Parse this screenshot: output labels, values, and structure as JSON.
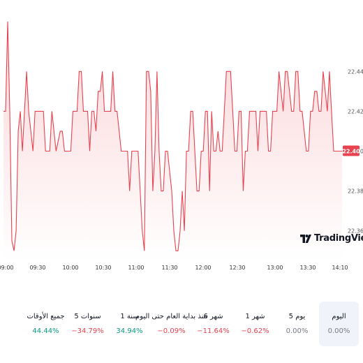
{
  "chart_data": {
    "type": "area",
    "x_ticks": [
      "09:00",
      "09:30",
      "10:00",
      "10:30",
      "11:00",
      "11:30",
      "12:00",
      "12:30",
      "13:00",
      "13:30",
      "14:10"
    ],
    "y_ticks": [
      "22.44",
      "22.42",
      "22.40",
      "22.38",
      "22.36"
    ],
    "ylim": [
      22.348,
      22.466
    ],
    "last_price_label": "22.40",
    "colors": {
      "line": "#e8424f",
      "fill_top": "#fbd5d8",
      "fill_bottom": "#ffffff"
    },
    "grid": false,
    "values": [
      22.42,
      22.42,
      22.465,
      22.42,
      22.355,
      22.35,
      22.36,
      22.41,
      22.42,
      22.4,
      22.42,
      22.44,
      22.42,
      22.41,
      22.4,
      22.42,
      22.42,
      22.42,
      22.42,
      22.42,
      22.4,
      22.4,
      22.4,
      22.42,
      22.41,
      22.4,
      22.405,
      22.41,
      22.41,
      22.4,
      22.4,
      22.4,
      22.4,
      22.42,
      22.42,
      22.42,
      22.44,
      22.44,
      22.42,
      22.42,
      22.42,
      22.4,
      22.42,
      22.42,
      22.41,
      22.43,
      22.43,
      22.44,
      22.42,
      22.42,
      22.42,
      22.42,
      22.44,
      22.42,
      22.42,
      22.41,
      22.4,
      22.4,
      22.4,
      22.4,
      22.38,
      22.4,
      22.4,
      22.4,
      22.4,
      22.38,
      22.36,
      22.35,
      22.44,
      22.44,
      22.43,
      22.38,
      22.4,
      22.44,
      22.4,
      22.38,
      22.38,
      22.4,
      22.4,
      22.39,
      22.38,
      22.36,
      22.35,
      22.35,
      22.36,
      22.38,
      22.36,
      22.4,
      22.4,
      22.42,
      22.42,
      22.4,
      22.38,
      22.38,
      22.4,
      22.4,
      22.42,
      22.42,
      22.38,
      22.42,
      22.4,
      22.4,
      22.41,
      22.4,
      22.4,
      22.42,
      22.44,
      22.44,
      22.44,
      22.42,
      22.4,
      22.4,
      22.42,
      22.42,
      22.38,
      22.4,
      22.4,
      22.42,
      22.42,
      22.42,
      22.42,
      22.4,
      22.42,
      22.42,
      22.42,
      22.42,
      22.4,
      22.4,
      22.42,
      22.42,
      22.42,
      22.44,
      22.43,
      22.42,
      22.44,
      22.44,
      22.43,
      22.42,
      22.42,
      22.44,
      22.44,
      22.42,
      22.42,
      22.41,
      22.4,
      22.4,
      22.42,
      22.42,
      22.43,
      22.43,
      22.42,
      22.42,
      22.44,
      22.43,
      22.42,
      22.44,
      22.42,
      22.4,
      22.4,
      22.4,
      22.4,
      22.4
    ]
  },
  "brand": {
    "name": "TradingView"
  },
  "periods": [
    {
      "label": "اليوم",
      "value": "0.00%",
      "tone": "neu",
      "active": true
    },
    {
      "label": "5 يوم",
      "value": "0.00%",
      "tone": "neu",
      "active": false
    },
    {
      "label": "1 شهر",
      "value": "−0.62%",
      "tone": "neg",
      "active": false
    },
    {
      "label": "6 شهر",
      "value": "−11.64%",
      "tone": "neg",
      "active": false
    },
    {
      "label": "منذ بداية العام حتى اليوم",
      "value": "−0.09%",
      "tone": "neg",
      "active": false
    },
    {
      "label": "1 سنة",
      "value": "34.94%",
      "tone": "pos",
      "active": false
    },
    {
      "label": "5 سنوات",
      "value": "−34.79%",
      "tone": "neg",
      "active": false
    },
    {
      "label": "جميع الأوقات",
      "value": "44.44%",
      "tone": "pos",
      "active": false
    }
  ]
}
